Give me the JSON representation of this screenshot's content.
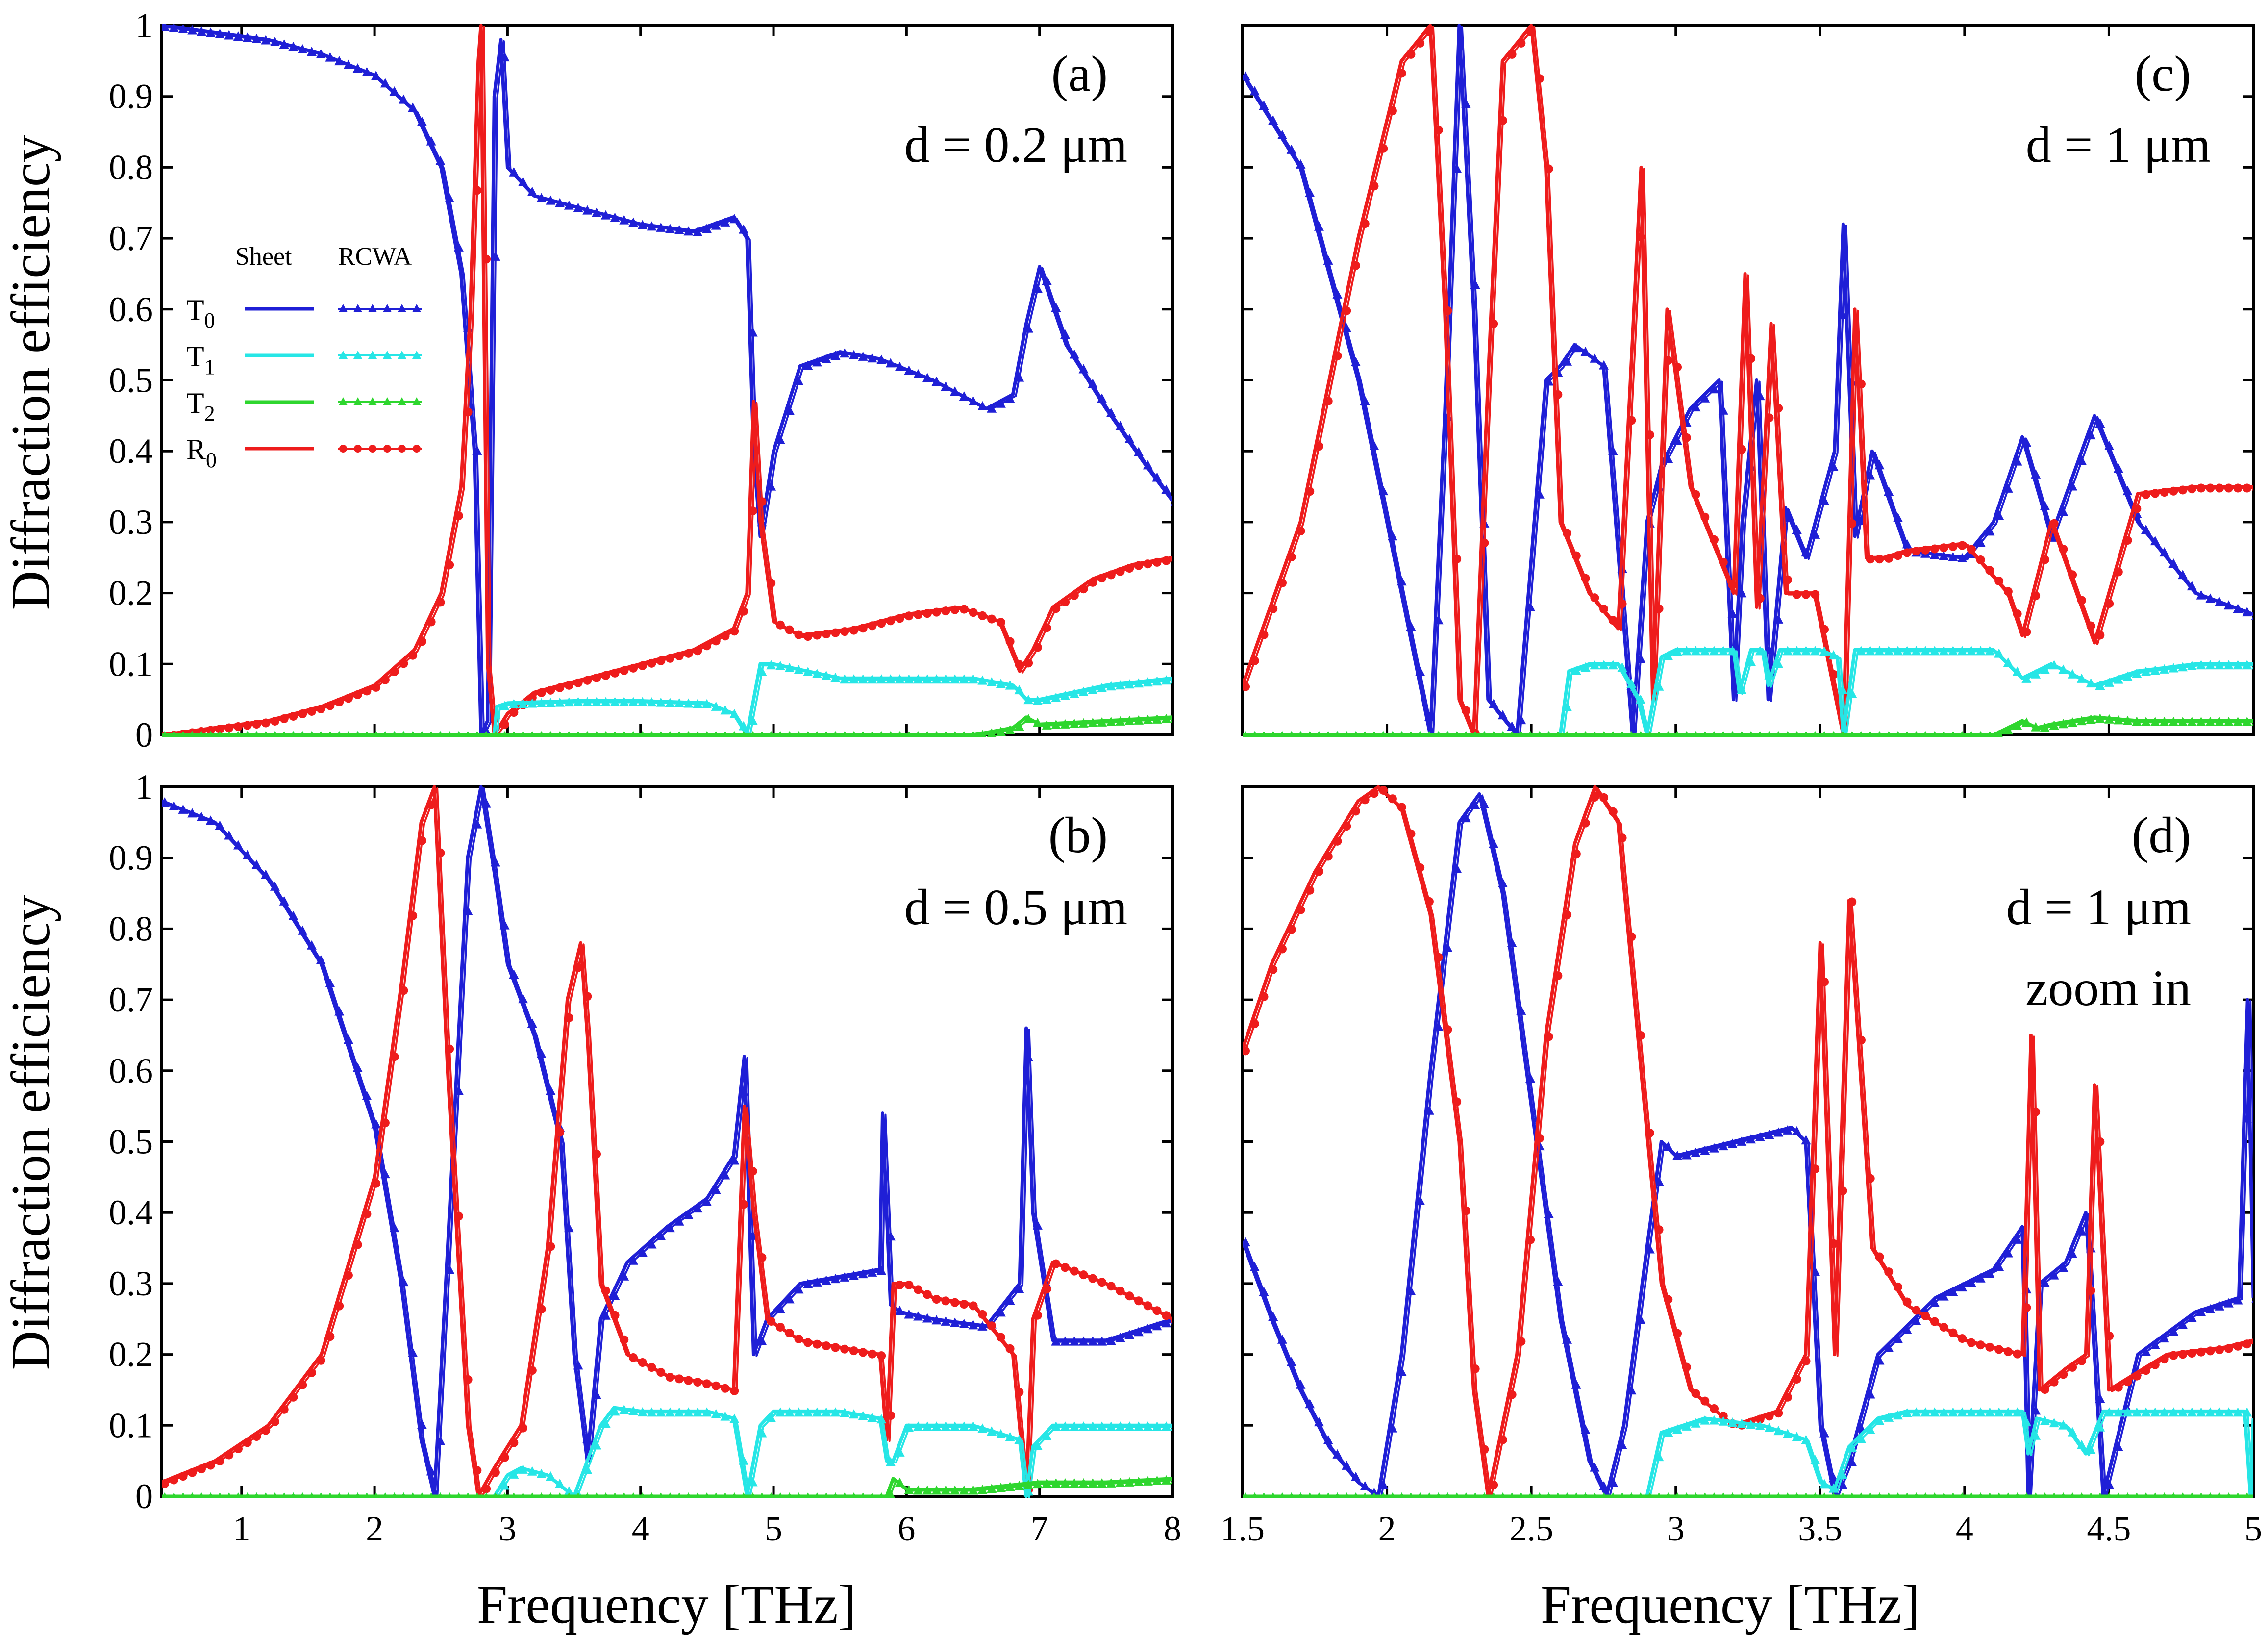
{
  "figure": {
    "ylabel": "Diffraction efficiency",
    "xlabel": "Frequency [THz]"
  },
  "colors": {
    "T0": "#1f1fd6",
    "T1": "#26e6e6",
    "T2": "#2ed62e",
    "R0": "#ee1c1c"
  },
  "legend": {
    "header_sheet": "Sheet",
    "header_rcwa": "RCWA",
    "entries": [
      {
        "key": "T0",
        "label_main": "T",
        "label_sub": "0"
      },
      {
        "key": "T1",
        "label_main": "T",
        "label_sub": "1"
      },
      {
        "key": "T2",
        "label_main": "T",
        "label_sub": "2"
      },
      {
        "key": "R0",
        "label_main": "R",
        "label_sub": "0"
      }
    ]
  },
  "chart_data": [
    {
      "id": "a",
      "type": "line",
      "panel_label": "(a)",
      "annotation": [
        "d = 0.2 μm"
      ],
      "xlim": [
        0.4,
        8
      ],
      "ylim": [
        0,
        1
      ],
      "yticks": [
        "0",
        "0.1",
        "0.2",
        "0.3",
        "0.4",
        "0.5",
        "0.6",
        "0.7",
        "0.8",
        "0.9",
        "1"
      ],
      "xticks": [],
      "series": [
        {
          "key": "T0",
          "x": [
            0.4,
            0.8,
            1.2,
            1.6,
            2.0,
            2.3,
            2.5,
            2.65,
            2.75,
            2.8,
            2.85,
            2.9,
            2.95,
            3.0,
            3.2,
            3.6,
            4.0,
            4.4,
            4.7,
            4.8,
            4.85,
            4.9,
            5.0,
            5.2,
            5.5,
            5.8,
            6.2,
            6.6,
            6.8,
            6.9,
            7.0,
            7.2,
            7.5,
            7.8,
            8.0
          ],
          "y": [
            1.0,
            0.99,
            0.98,
            0.96,
            0.93,
            0.88,
            0.8,
            0.65,
            0.4,
            0.0,
            0.02,
            0.9,
            0.98,
            0.8,
            0.76,
            0.74,
            0.72,
            0.71,
            0.73,
            0.7,
            0.4,
            0.28,
            0.4,
            0.52,
            0.54,
            0.53,
            0.5,
            0.46,
            0.48,
            0.58,
            0.66,
            0.55,
            0.46,
            0.38,
            0.33
          ]
        },
        {
          "key": "R0",
          "x": [
            0.4,
            0.8,
            1.2,
            1.6,
            2.0,
            2.3,
            2.5,
            2.65,
            2.72,
            2.78,
            2.8,
            2.85,
            2.9,
            3.0,
            3.2,
            3.6,
            4.0,
            4.4,
            4.7,
            4.8,
            4.85,
            4.9,
            5.0,
            5.2,
            5.6,
            6.0,
            6.4,
            6.7,
            6.85,
            6.95,
            7.1,
            7.4,
            7.7,
            8.0
          ],
          "y": [
            0.0,
            0.01,
            0.02,
            0.04,
            0.07,
            0.12,
            0.2,
            0.35,
            0.6,
            0.95,
            1.0,
            0.1,
            0.0,
            0.03,
            0.06,
            0.08,
            0.1,
            0.12,
            0.15,
            0.2,
            0.47,
            0.3,
            0.16,
            0.14,
            0.15,
            0.17,
            0.18,
            0.16,
            0.09,
            0.12,
            0.18,
            0.22,
            0.24,
            0.25
          ]
        },
        {
          "key": "T1",
          "x": [
            0.4,
            2.9,
            2.92,
            3.0,
            3.5,
            4.0,
            4.5,
            4.7,
            4.8,
            4.85,
            4.9,
            5.0,
            5.5,
            6.0,
            6.5,
            6.8,
            6.9,
            7.0,
            7.5,
            8.0
          ],
          "y": [
            0.0,
            0.0,
            0.04,
            0.045,
            0.048,
            0.048,
            0.045,
            0.03,
            0.0,
            0.05,
            0.1,
            0.1,
            0.08,
            0.08,
            0.08,
            0.07,
            0.05,
            0.05,
            0.07,
            0.08
          ]
        },
        {
          "key": "T2",
          "x": [
            0.4,
            6.5,
            6.8,
            6.9,
            7.0,
            7.5,
            8.0
          ],
          "y": [
            0.0,
            0.0,
            0.01,
            0.025,
            0.015,
            0.02,
            0.025
          ]
        }
      ]
    },
    {
      "id": "b",
      "type": "line",
      "panel_label": "(b)",
      "annotation": [
        "d = 0.5 μm"
      ],
      "xlim": [
        0.4,
        8
      ],
      "ylim": [
        0,
        1
      ],
      "yticks": [
        "0",
        "0.1",
        "0.2",
        "0.3",
        "0.4",
        "0.5",
        "0.6",
        "0.7",
        "0.8",
        "0.9",
        "1"
      ],
      "xticks": [
        "1",
        "2",
        "3",
        "4",
        "5",
        "6",
        "7",
        "8"
      ],
      "series": [
        {
          "key": "T0",
          "x": [
            0.4,
            0.8,
            1.2,
            1.6,
            2.0,
            2.2,
            2.35,
            2.45,
            2.55,
            2.7,
            2.8,
            2.9,
            3.0,
            3.2,
            3.4,
            3.5,
            3.6,
            3.7,
            3.9,
            4.2,
            4.5,
            4.7,
            4.78,
            4.85,
            4.95,
            5.2,
            5.5,
            5.8,
            5.82,
            5.88,
            5.95,
            6.2,
            6.6,
            6.85,
            6.9,
            6.95,
            7.1,
            7.5,
            8.0
          ],
          "y": [
            0.98,
            0.95,
            0.87,
            0.75,
            0.52,
            0.3,
            0.08,
            0.0,
            0.35,
            0.9,
            1.0,
            0.88,
            0.75,
            0.65,
            0.5,
            0.2,
            0.05,
            0.25,
            0.33,
            0.38,
            0.42,
            0.48,
            0.62,
            0.2,
            0.25,
            0.3,
            0.31,
            0.32,
            0.54,
            0.27,
            0.26,
            0.25,
            0.24,
            0.3,
            0.66,
            0.4,
            0.22,
            0.22,
            0.25
          ]
        },
        {
          "key": "R0",
          "x": [
            0.4,
            0.8,
            1.2,
            1.6,
            2.0,
            2.2,
            2.35,
            2.45,
            2.55,
            2.7,
            2.78,
            2.9,
            3.1,
            3.3,
            3.45,
            3.55,
            3.6,
            3.7,
            3.9,
            4.2,
            4.5,
            4.7,
            4.78,
            4.85,
            4.95,
            5.2,
            5.5,
            5.8,
            5.85,
            5.9,
            6.0,
            6.2,
            6.5,
            6.8,
            6.9,
            6.95,
            7.1,
            7.5,
            8.0
          ],
          "y": [
            0.02,
            0.05,
            0.1,
            0.2,
            0.45,
            0.72,
            0.95,
            1.0,
            0.6,
            0.1,
            0.0,
            0.04,
            0.1,
            0.35,
            0.7,
            0.78,
            0.65,
            0.3,
            0.2,
            0.17,
            0.16,
            0.15,
            0.55,
            0.4,
            0.25,
            0.22,
            0.21,
            0.2,
            0.08,
            0.3,
            0.3,
            0.28,
            0.27,
            0.2,
            0.0,
            0.25,
            0.33,
            0.3,
            0.25
          ]
        },
        {
          "key": "T1",
          "x": [
            0.4,
            2.9,
            3.0,
            3.1,
            3.3,
            3.5,
            3.6,
            3.7,
            3.8,
            4.0,
            4.5,
            4.7,
            4.8,
            4.9,
            5.0,
            5.5,
            5.8,
            5.85,
            5.9,
            6.0,
            6.5,
            6.85,
            6.9,
            6.95,
            7.1,
            7.5,
            8.0
          ],
          "y": [
            0.0,
            0.0,
            0.03,
            0.04,
            0.03,
            0.0,
            0.05,
            0.1,
            0.125,
            0.12,
            0.12,
            0.11,
            0.0,
            0.1,
            0.12,
            0.12,
            0.11,
            0.05,
            0.05,
            0.1,
            0.1,
            0.08,
            0.0,
            0.07,
            0.1,
            0.1,
            0.1
          ]
        },
        {
          "key": "T2",
          "x": [
            0.4,
            5.85,
            5.9,
            6.0,
            6.5,
            7.0,
            7.5,
            8.0
          ],
          "y": [
            0.0,
            0.0,
            0.025,
            0.01,
            0.01,
            0.02,
            0.02,
            0.025
          ]
        }
      ]
    },
    {
      "id": "c",
      "type": "line",
      "panel_label": "(c)",
      "annotation": [
        "d = 1 μm"
      ],
      "xlim": [
        1.5,
        5
      ],
      "ylim": [
        0,
        1
      ],
      "yticks": [],
      "xticks": [],
      "series": [
        {
          "key": "T0",
          "x": [
            1.5,
            1.7,
            1.9,
            2.05,
            2.15,
            2.2,
            2.25,
            2.3,
            2.35,
            2.45,
            2.55,
            2.6,
            2.65,
            2.75,
            2.85,
            2.9,
            2.95,
            3.05,
            3.15,
            3.2,
            3.23,
            3.28,
            3.32,
            3.38,
            3.45,
            3.55,
            3.58,
            3.62,
            3.68,
            3.8,
            4.0,
            4.1,
            4.2,
            4.3,
            4.45,
            4.6,
            4.8,
            5.0
          ],
          "y": [
            0.93,
            0.8,
            0.5,
            0.2,
            0.0,
            0.45,
            1.0,
            0.6,
            0.05,
            0.0,
            0.5,
            0.52,
            0.55,
            0.52,
            0.0,
            0.3,
            0.38,
            0.46,
            0.5,
            0.05,
            0.3,
            0.5,
            0.05,
            0.32,
            0.25,
            0.4,
            0.72,
            0.28,
            0.4,
            0.26,
            0.25,
            0.3,
            0.42,
            0.28,
            0.45,
            0.3,
            0.2,
            0.17
          ]
        },
        {
          "key": "R0",
          "x": [
            1.5,
            1.7,
            1.9,
            2.05,
            2.15,
            2.2,
            2.25,
            2.3,
            2.35,
            2.4,
            2.5,
            2.55,
            2.6,
            2.7,
            2.8,
            2.88,
            2.92,
            2.97,
            3.05,
            3.15,
            3.2,
            3.24,
            3.28,
            3.33,
            3.38,
            3.48,
            3.58,
            3.62,
            3.66,
            3.72,
            3.8,
            4.0,
            4.15,
            4.2,
            4.3,
            4.45,
            4.6,
            4.8,
            5.0
          ],
          "y": [
            0.07,
            0.3,
            0.7,
            0.95,
            1.0,
            0.6,
            0.05,
            0.0,
            0.5,
            0.95,
            1.0,
            0.8,
            0.3,
            0.2,
            0.15,
            0.8,
            0.05,
            0.6,
            0.35,
            0.25,
            0.2,
            0.65,
            0.18,
            0.58,
            0.2,
            0.2,
            0.0,
            0.6,
            0.25,
            0.25,
            0.26,
            0.27,
            0.2,
            0.14,
            0.3,
            0.13,
            0.34,
            0.35,
            0.35
          ]
        },
        {
          "key": "T1",
          "x": [
            1.5,
            2.6,
            2.63,
            2.7,
            2.8,
            2.87,
            2.9,
            2.95,
            3.0,
            3.2,
            3.22,
            3.26,
            3.3,
            3.32,
            3.36,
            3.5,
            3.56,
            3.58,
            3.62,
            3.8,
            4.0,
            4.1,
            4.2,
            4.3,
            4.45,
            4.6,
            4.8,
            5.0
          ],
          "y": [
            0.0,
            0.0,
            0.09,
            0.1,
            0.1,
            0.05,
            0.0,
            0.11,
            0.12,
            0.12,
            0.06,
            0.12,
            0.12,
            0.07,
            0.12,
            0.12,
            0.11,
            0.0,
            0.12,
            0.12,
            0.12,
            0.12,
            0.08,
            0.1,
            0.07,
            0.09,
            0.1,
            0.1
          ]
        },
        {
          "key": "T2",
          "x": [
            1.5,
            4.1,
            4.2,
            4.25,
            4.3,
            4.45,
            4.6,
            4.8,
            5.0
          ],
          "y": [
            0.0,
            0.0,
            0.02,
            0.01,
            0.015,
            0.025,
            0.02,
            0.02,
            0.02
          ]
        }
      ]
    },
    {
      "id": "d",
      "type": "line",
      "panel_label": "(d)",
      "annotation": [
        "d = 1 μm",
        "zoom in"
      ],
      "xlim": [
        1.5,
        5
      ],
      "ylim": [
        0,
        1
      ],
      "yticks": [],
      "xticks": [
        "1.5",
        "2",
        "2.5",
        "3",
        "3.5",
        "4",
        "4.5",
        "5"
      ],
      "series": [
        {
          "key": "T0",
          "x": [
            1.5,
            1.6,
            1.7,
            1.8,
            1.9,
            1.97,
            2.05,
            2.15,
            2.25,
            2.32,
            2.4,
            2.5,
            2.6,
            2.7,
            2.76,
            2.82,
            2.9,
            2.95,
            3.0,
            3.2,
            3.4,
            3.45,
            3.5,
            3.55,
            3.6,
            3.7,
            3.9,
            4.1,
            4.2,
            4.22,
            4.26,
            4.35,
            4.42,
            4.48,
            4.6,
            4.8,
            4.95,
            4.98,
            5.0
          ],
          "y": [
            0.36,
            0.25,
            0.15,
            0.07,
            0.02,
            0.0,
            0.2,
            0.6,
            0.95,
            0.99,
            0.85,
            0.55,
            0.25,
            0.05,
            0.0,
            0.1,
            0.35,
            0.5,
            0.48,
            0.5,
            0.52,
            0.5,
            0.1,
            0.0,
            0.05,
            0.2,
            0.28,
            0.32,
            0.38,
            0.0,
            0.3,
            0.33,
            0.4,
            0.0,
            0.2,
            0.26,
            0.28,
            0.7,
            0.28
          ]
        },
        {
          "key": "R0",
          "x": [
            1.5,
            1.6,
            1.75,
            1.9,
            1.97,
            2.05,
            2.15,
            2.25,
            2.3,
            2.35,
            2.45,
            2.55,
            2.65,
            2.72,
            2.8,
            2.88,
            2.95,
            3.05,
            3.2,
            3.35,
            3.45,
            3.5,
            3.55,
            3.6,
            3.68,
            3.8,
            4.0,
            4.2,
            4.23,
            4.26,
            4.35,
            4.42,
            4.45,
            4.5,
            4.7,
            4.9,
            5.0
          ],
          "y": [
            0.63,
            0.75,
            0.88,
            0.98,
            1.0,
            0.97,
            0.82,
            0.5,
            0.15,
            0.0,
            0.2,
            0.65,
            0.92,
            1.0,
            0.95,
            0.6,
            0.3,
            0.15,
            0.1,
            0.12,
            0.2,
            0.78,
            0.2,
            0.84,
            0.35,
            0.27,
            0.22,
            0.2,
            0.65,
            0.15,
            0.18,
            0.2,
            0.58,
            0.15,
            0.2,
            0.21,
            0.22
          ]
        },
        {
          "key": "T1",
          "x": [
            1.5,
            2.9,
            2.95,
            3.1,
            3.3,
            3.45,
            3.5,
            3.55,
            3.6,
            3.7,
            3.8,
            4.0,
            4.2,
            4.22,
            4.25,
            4.35,
            4.42,
            4.48,
            4.6,
            4.8,
            4.97,
            4.99,
            5.0
          ],
          "y": [
            0.0,
            0.0,
            0.09,
            0.11,
            0.1,
            0.08,
            0.02,
            0.01,
            0.07,
            0.11,
            0.12,
            0.12,
            0.12,
            0.06,
            0.11,
            0.1,
            0.06,
            0.12,
            0.12,
            0.12,
            0.12,
            0.0,
            0.11
          ]
        },
        {
          "key": "T2",
          "x": [
            1.5,
            5.0
          ],
          "y": [
            0.0,
            0.0
          ]
        }
      ]
    }
  ]
}
